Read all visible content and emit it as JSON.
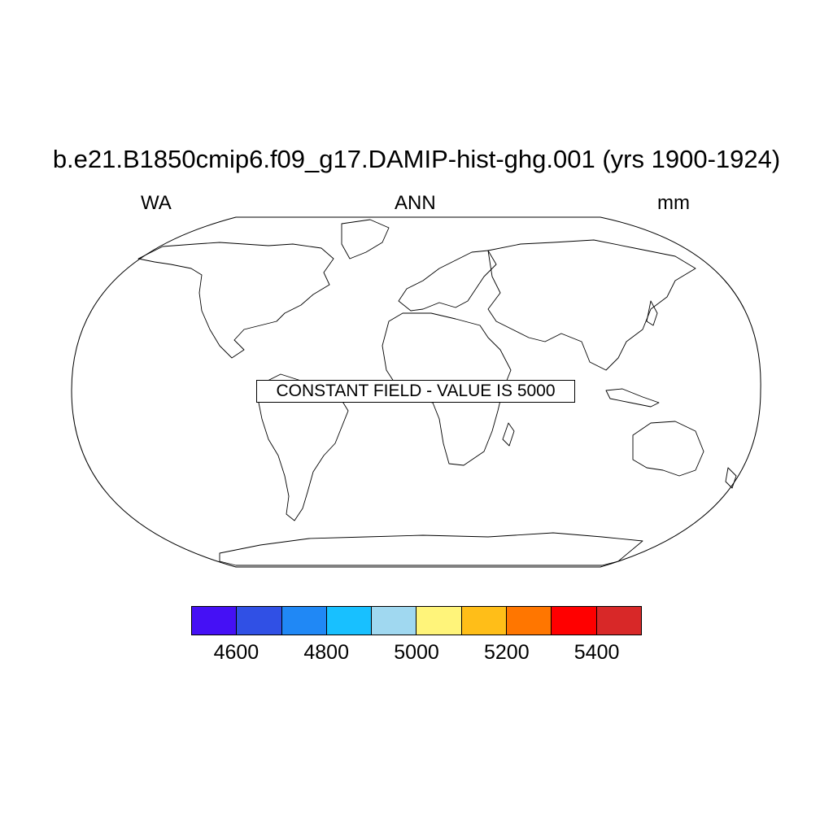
{
  "title": "b.e21.B1850cmip6.f09_g17.DAMIP-hist-ghg.001 (yrs 1900-1924)",
  "left_string": "WA",
  "center_string": "ANN",
  "right_string": "mm",
  "annotation": "CONSTANT FIELD - VALUE IS 5000",
  "projection": "robinson",
  "map_background": "#ffffff",
  "coastline_color": "#000000",
  "colorbar": {
    "colors": [
      "#4510F5",
      "#3050E5",
      "#2088F5",
      "#18C0FF",
      "#A0D8F0",
      "#FFF47A",
      "#FFBE18",
      "#FF7600",
      "#FF0000",
      "#D82828"
    ],
    "labels": [
      "4600",
      "4800",
      "5000",
      "5200",
      "5400"
    ]
  }
}
